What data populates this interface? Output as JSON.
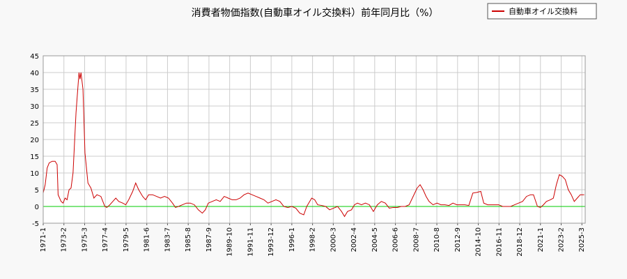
{
  "chart_data": {
    "type": "line",
    "title": "消費者物価指数(自動車オイル交換料）前年同月比（%）",
    "xlabel": "",
    "ylabel": "",
    "ylim": [
      -5,
      45
    ],
    "yticks": [
      -5,
      0,
      5,
      10,
      15,
      20,
      25,
      30,
      35,
      40,
      45
    ],
    "grid": true,
    "legend_position": "top-right",
    "series": [
      {
        "name": "自動車オイル交換料",
        "color": "#cc0000",
        "points": [
          [
            1971.0,
            4.0
          ],
          [
            1971.2,
            6.5
          ],
          [
            1971.4,
            11.5
          ],
          [
            1971.6,
            13.0
          ],
          [
            1971.9,
            13.5
          ],
          [
            1972.2,
            13.5
          ],
          [
            1972.4,
            12.5
          ],
          [
            1972.5,
            3.5
          ],
          [
            1972.8,
            1.5
          ],
          [
            1973.0,
            1.0
          ],
          [
            1973.2,
            2.5
          ],
          [
            1973.4,
            2.0
          ],
          [
            1973.6,
            5.0
          ],
          [
            1973.8,
            5.5
          ],
          [
            1974.0,
            10.0
          ],
          [
            1974.3,
            28.0
          ],
          [
            1974.6,
            40.0
          ],
          [
            1974.7,
            38.0
          ],
          [
            1974.8,
            40.0
          ],
          [
            1975.0,
            35.0
          ],
          [
            1975.2,
            16.0
          ],
          [
            1975.5,
            7.0
          ],
          [
            1975.8,
            5.5
          ],
          [
            1976.1,
            2.5
          ],
          [
            1976.4,
            3.5
          ],
          [
            1976.8,
            3.0
          ],
          [
            1977.0,
            1.5
          ],
          [
            1977.2,
            0.0
          ],
          [
            1977.4,
            -0.3
          ],
          [
            1977.7,
            0.5
          ],
          [
            1978.0,
            1.5
          ],
          [
            1978.3,
            2.5
          ],
          [
            1978.6,
            1.5
          ],
          [
            1979.0,
            1.0
          ],
          [
            1979.3,
            0.5
          ],
          [
            1979.6,
            2.0
          ],
          [
            1980.0,
            4.5
          ],
          [
            1980.3,
            7.0
          ],
          [
            1980.6,
            5.0
          ],
          [
            1981.0,
            3.0
          ],
          [
            1981.3,
            2.0
          ],
          [
            1981.6,
            3.5
          ],
          [
            1982.0,
            3.5
          ],
          [
            1982.4,
            3.0
          ],
          [
            1982.8,
            2.5
          ],
          [
            1983.2,
            3.0
          ],
          [
            1983.6,
            2.5
          ],
          [
            1984.0,
            1.0
          ],
          [
            1984.3,
            -0.3
          ],
          [
            1984.6,
            0.0
          ],
          [
            1985.0,
            0.5
          ],
          [
            1985.4,
            1.0
          ],
          [
            1985.8,
            1.0
          ],
          [
            1986.2,
            0.5
          ],
          [
            1986.6,
            -1.0
          ],
          [
            1987.0,
            -2.0
          ],
          [
            1987.3,
            -1.0
          ],
          [
            1987.6,
            1.0
          ],
          [
            1988.0,
            1.5
          ],
          [
            1988.4,
            2.0
          ],
          [
            1988.8,
            1.5
          ],
          [
            1989.2,
            3.0
          ],
          [
            1989.6,
            2.5
          ],
          [
            1990.0,
            2.0
          ],
          [
            1990.4,
            2.0
          ],
          [
            1990.8,
            2.5
          ],
          [
            1991.2,
            3.5
          ],
          [
            1991.6,
            4.0
          ],
          [
            1992.0,
            3.5
          ],
          [
            1992.4,
            3.0
          ],
          [
            1992.8,
            2.5
          ],
          [
            1993.2,
            2.0
          ],
          [
            1993.6,
            1.0
          ],
          [
            1994.0,
            1.5
          ],
          [
            1994.4,
            2.0
          ],
          [
            1994.8,
            1.5
          ],
          [
            1995.2,
            0.0
          ],
          [
            1995.6,
            -0.3
          ],
          [
            1996.0,
            0.0
          ],
          [
            1996.4,
            -0.5
          ],
          [
            1996.8,
            -2.0
          ],
          [
            1997.2,
            -2.5
          ],
          [
            1997.5,
            0.0
          ],
          [
            1997.8,
            1.5
          ],
          [
            1998.0,
            2.5
          ],
          [
            1998.3,
            2.0
          ],
          [
            1998.6,
            0.5
          ],
          [
            1999.0,
            0.3
          ],
          [
            1999.4,
            0.0
          ],
          [
            1999.8,
            -1.0
          ],
          [
            2000.2,
            -0.5
          ],
          [
            2000.6,
            0.0
          ],
          [
            2001.0,
            -1.5
          ],
          [
            2001.3,
            -3.0
          ],
          [
            2001.6,
            -1.5
          ],
          [
            2002.0,
            -1.0
          ],
          [
            2002.3,
            0.5
          ],
          [
            2002.6,
            1.0
          ],
          [
            2003.0,
            0.5
          ],
          [
            2003.4,
            1.0
          ],
          [
            2003.8,
            0.5
          ],
          [
            2004.2,
            -1.5
          ],
          [
            2004.6,
            0.5
          ],
          [
            2005.0,
            1.5
          ],
          [
            2005.4,
            1.0
          ],
          [
            2005.8,
            -0.5
          ],
          [
            2006.2,
            -0.3
          ],
          [
            2006.6,
            -0.3
          ],
          [
            2007.0,
            0.0
          ],
          [
            2007.4,
            0.0
          ],
          [
            2007.8,
            0.5
          ],
          [
            2008.2,
            3.0
          ],
          [
            2008.6,
            5.5
          ],
          [
            2008.9,
            6.5
          ],
          [
            2009.2,
            5.0
          ],
          [
            2009.5,
            3.0
          ],
          [
            2009.8,
            1.5
          ],
          [
            2010.2,
            0.5
          ],
          [
            2010.6,
            1.0
          ],
          [
            2011.0,
            0.5
          ],
          [
            2011.4,
            0.5
          ],
          [
            2011.8,
            0.3
          ],
          [
            2012.2,
            1.0
          ],
          [
            2012.6,
            0.5
          ],
          [
            2013.0,
            0.5
          ],
          [
            2013.4,
            0.5
          ],
          [
            2013.8,
            0.3
          ],
          [
            2014.2,
            4.0
          ],
          [
            2014.6,
            4.2
          ],
          [
            2015.0,
            4.5
          ],
          [
            2015.3,
            1.0
          ],
          [
            2015.7,
            0.5
          ],
          [
            2016.0,
            0.5
          ],
          [
            2016.4,
            0.5
          ],
          [
            2016.8,
            0.5
          ],
          [
            2017.2,
            0.0
          ],
          [
            2017.6,
            0.0
          ],
          [
            2018.0,
            0.0
          ],
          [
            2018.4,
            0.5
          ],
          [
            2018.8,
            1.0
          ],
          [
            2019.2,
            1.5
          ],
          [
            2019.6,
            3.0
          ],
          [
            2020.0,
            3.5
          ],
          [
            2020.3,
            3.5
          ],
          [
            2020.7,
            0.0
          ],
          [
            2021.0,
            -0.3
          ],
          [
            2021.3,
            0.5
          ],
          [
            2021.6,
            1.5
          ],
          [
            2022.0,
            2.0
          ],
          [
            2022.3,
            2.5
          ],
          [
            2022.6,
            6.5
          ],
          [
            2022.9,
            9.5
          ],
          [
            2023.2,
            9.0
          ],
          [
            2023.5,
            8.0
          ],
          [
            2023.8,
            5.0
          ],
          [
            2024.1,
            3.5
          ],
          [
            2024.4,
            1.5
          ],
          [
            2024.7,
            2.5
          ],
          [
            2025.0,
            3.5
          ],
          [
            2025.4,
            3.5
          ]
        ]
      },
      {
        "name": "zero-line",
        "color": "#00cc00",
        "points": [
          [
            1971.0,
            0
          ],
          [
            2025.5,
            0
          ]
        ]
      }
    ],
    "x_tick_labels": [
      "1971-1",
      "1973-2",
      "1975-3",
      "1977-4",
      "1979-5",
      "1981-6",
      "1983-7",
      "1985-8",
      "1987-9",
      "1989-10",
      "1991-11",
      "1993-12",
      "1996-1",
      "1998-2",
      "2000-3",
      "2002-4",
      "2004-5",
      "2006-6",
      "2008-7",
      "2010-8",
      "2012-9",
      "2014-10",
      "2016-11",
      "2018-12",
      "2021-1",
      "2023-2",
      "2025-3"
    ],
    "x_tick_values": [
      1971.0,
      1973.083,
      1975.167,
      1977.25,
      1979.333,
      1981.417,
      1983.5,
      1985.583,
      1987.667,
      1989.75,
      1991.833,
      1993.917,
      1996.0,
      1998.083,
      2000.167,
      2002.25,
      2004.333,
      2006.417,
      2008.5,
      2010.583,
      2012.667,
      2014.75,
      2016.833,
      2018.917,
      2021.0,
      2023.083,
      2025.167
    ],
    "xlim": [
      1971.0,
      2025.5
    ]
  }
}
